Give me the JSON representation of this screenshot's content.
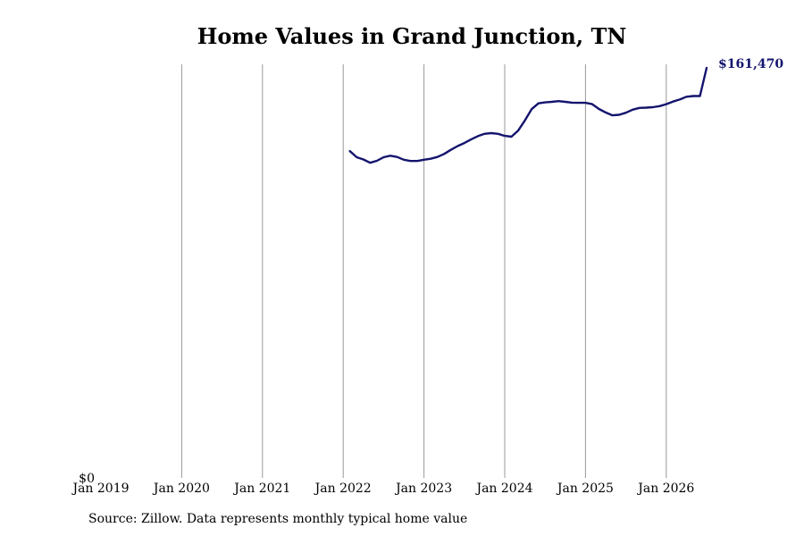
{
  "chart_data": {
    "type": "line",
    "title": "Home Values in Grand Junction, TN",
    "xlabel": "",
    "ylabel": "",
    "x_tick_labels": [
      "Jan 2019",
      "Jan 2020",
      "Jan 2021",
      "Jan 2022",
      "Jan 2023",
      "Jan 2024",
      "Jan 2025",
      "Jan 2026"
    ],
    "x_range": [
      "2019-01",
      "2026-07"
    ],
    "y_tick_labels": [
      "$0"
    ],
    "ylim": [
      0,
      161470
    ],
    "grid": "vertical lines at each January",
    "line_color": "#14146e",
    "end_label": "$161,470",
    "series": [
      {
        "x": [
          "2022-02",
          "2022-03",
          "2022-04",
          "2022-05",
          "2022-06",
          "2022-07",
          "2022-08",
          "2022-09",
          "2022-10",
          "2022-11",
          "2022-12",
          "2023-01",
          "2023-02",
          "2023-03",
          "2023-04",
          "2023-05",
          "2023-06",
          "2023-07",
          "2023-08",
          "2023-09",
          "2023-10",
          "2023-11",
          "2023-12",
          "2024-01",
          "2024-02",
          "2024-03",
          "2024-04",
          "2024-05",
          "2024-06",
          "2024-07",
          "2024-08",
          "2024-09",
          "2024-10",
          "2024-11",
          "2024-12",
          "2025-01",
          "2025-02",
          "2025-03",
          "2025-04",
          "2025-05",
          "2025-06",
          "2025-07",
          "2025-08",
          "2025-09",
          "2025-10",
          "2025-11",
          "2025-12",
          "2026-01",
          "2026-02",
          "2026-03",
          "2026-04",
          "2026-05",
          "2026-06",
          "2026-07"
        ],
        "values": [
          128700,
          126300,
          125400,
          124100,
          124900,
          126300,
          126900,
          126400,
          125300,
          124800,
          124800,
          125300,
          125700,
          126400,
          127600,
          129200,
          130700,
          131900,
          133300,
          134600,
          135500,
          135800,
          135500,
          134700,
          134400,
          136800,
          140800,
          145200,
          147500,
          147900,
          148100,
          148400,
          148100,
          147800,
          147700,
          147700,
          147200,
          145300,
          143900,
          142800,
          143000,
          143800,
          145000,
          145700,
          145800,
          146000,
          146400,
          147200,
          148200,
          149000,
          150100,
          150400,
          150400,
          161470
        ]
      }
    ]
  },
  "source_note": "Source: Zillow. Data represents monthly typical home value"
}
